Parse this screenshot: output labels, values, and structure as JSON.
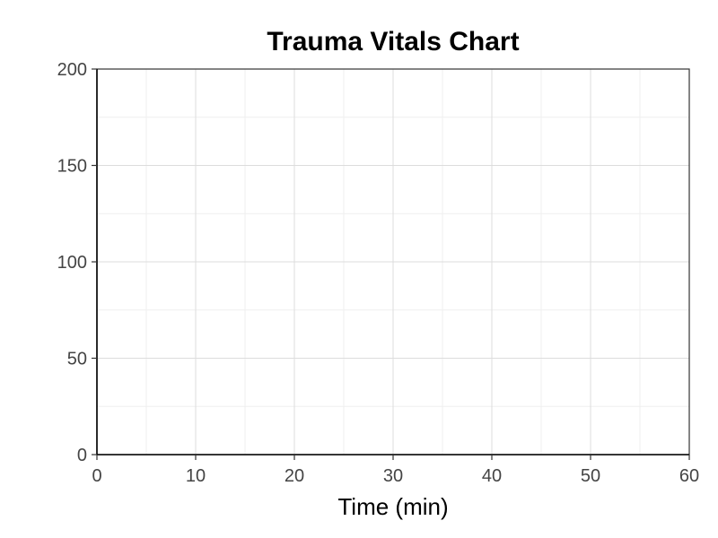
{
  "chart_data": {
    "type": "line",
    "title": "Trauma Vitals Chart",
    "xlabel": "Time (min)",
    "ylabel": "",
    "xlim": [
      0,
      60
    ],
    "ylim": [
      0,
      200
    ],
    "x_ticks": [
      0,
      10,
      20,
      30,
      40,
      50,
      60
    ],
    "y_ticks": [
      0,
      50,
      100,
      150,
      200
    ],
    "x_minor_ticks": [
      5,
      15,
      25,
      35,
      45,
      55
    ],
    "y_minor_ticks": [
      25,
      75,
      125,
      175
    ],
    "grid": true,
    "series": []
  }
}
